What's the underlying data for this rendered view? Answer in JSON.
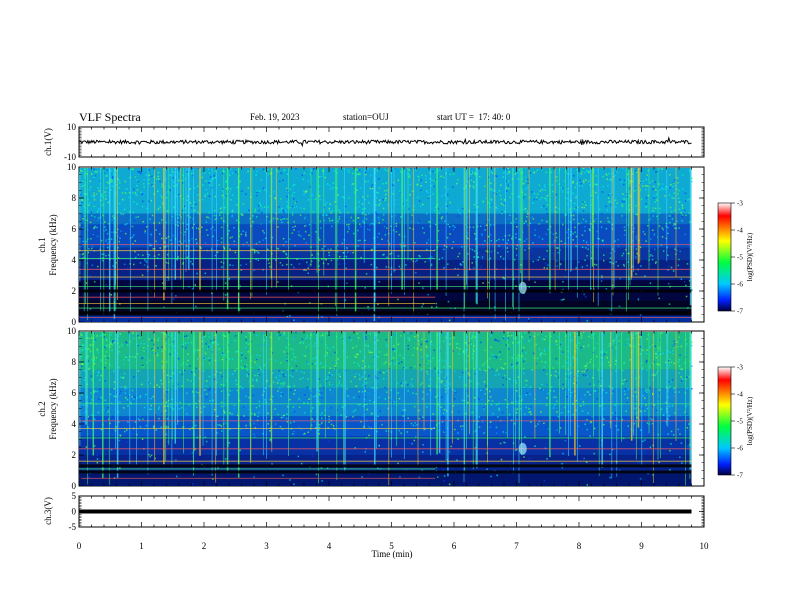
{
  "header": {
    "title": "VLF Spectra",
    "date": "Feb. 19, 2023",
    "station_label": "station=",
    "station": "OUJ",
    "start_label": "start  UT  =",
    "start_time": "17: 40: 0"
  },
  "chart_data": [
    {
      "type": "line",
      "panel": "ch1-waveform",
      "ylabel": "ch.1(V)",
      "ylim": [
        -10,
        10
      ],
      "yticks": [
        "10",
        "-10"
      ],
      "xlim": [
        0,
        10
      ],
      "trace_level": 0.0,
      "trace_amplitude": 1.2
    },
    {
      "type": "heatmap",
      "panel": "ch1-spectrogram",
      "ylabel_line1": "ch.1",
      "ylabel_line2": "Frequency (kHz)",
      "ylim": [
        0,
        10
      ],
      "yticks": [
        "0",
        "2",
        "4",
        "6",
        "8",
        "10"
      ],
      "xlim": [
        0,
        10
      ],
      "data_extent_min": 9.8,
      "colorbar": {
        "label": "log(PSD)(V²/Hz)",
        "range": [
          -7,
          -3
        ],
        "ticks": [
          "-3",
          "-4",
          "-5",
          "-6",
          "-7"
        ]
      }
    },
    {
      "type": "heatmap",
      "panel": "ch2-spectrogram",
      "ylabel_line1": "ch.2",
      "ylabel_line2": "Frequency (kHz)",
      "ylim": [
        0,
        10
      ],
      "yticks": [
        "0",
        "2",
        "4",
        "6",
        "8",
        "10"
      ],
      "xlim": [
        0,
        10
      ],
      "data_extent_min": 9.8,
      "colorbar": {
        "label": "log(PSD)(V²/Hz)",
        "range": [
          -7,
          -3
        ],
        "ticks": [
          "-3",
          "-4",
          "-5",
          "-6",
          "-7"
        ]
      }
    },
    {
      "type": "line",
      "panel": "ch3-waveform",
      "ylabel": "ch.3(V)",
      "ylim": [
        -5,
        5
      ],
      "yticks": [
        "5",
        "0",
        "-5"
      ],
      "xlim": [
        0,
        10
      ],
      "trace_level": 0.0,
      "xlabel": "Time (min)",
      "xticks": [
        "0",
        "1",
        "2",
        "3",
        "4",
        "5",
        "6",
        "7",
        "8",
        "9",
        "10"
      ]
    }
  ],
  "colors": {
    "background_dark": "#000080",
    "noise_mid": "#00c8ff",
    "noise_high": "#30ff60",
    "hot": "#ff2020",
    "trace": "#000000"
  }
}
